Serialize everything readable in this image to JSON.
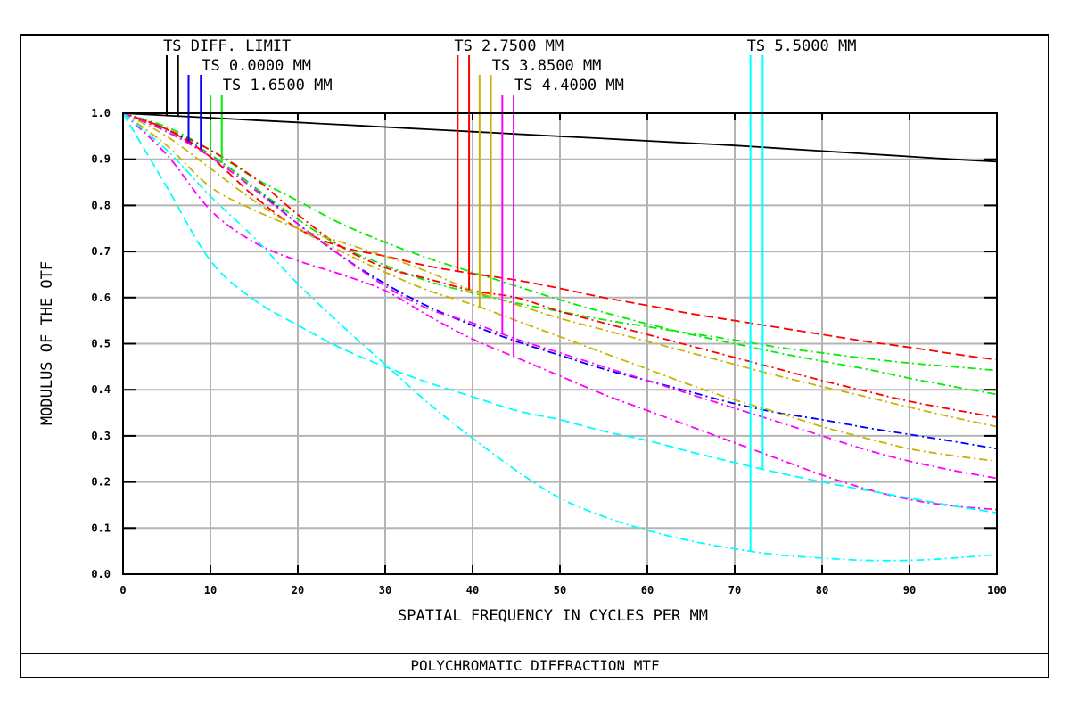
{
  "chart_data": {
    "type": "line",
    "title": "POLYCHROMATIC DIFFRACTION MTF",
    "xlabel": "SPATIAL FREQUENCY IN CYCLES PER MM",
    "ylabel": "MODULUS OF THE OTF",
    "xlim": [
      0,
      100
    ],
    "ylim": [
      0,
      1.0
    ],
    "grid": true,
    "x_ticks": [
      "0",
      "10",
      "20",
      "30",
      "40",
      "50",
      "60",
      "70",
      "80",
      "90",
      "100"
    ],
    "y_ticks": [
      "0.0",
      "0.1",
      "0.2",
      "0.3",
      "0.4",
      "0.5",
      "0.6",
      "0.7",
      "0.8",
      "0.9",
      "1.0"
    ],
    "legend": [
      {
        "label": "TS DIFF. LIMIT",
        "color": "#000000",
        "marker_x": [
          5,
          6.3
        ]
      },
      {
        "label": "TS 0.0000 MM",
        "color": "#0000ff",
        "marker_x": [
          7.5,
          8.9
        ]
      },
      {
        "label": "TS 1.6500 MM",
        "color": "#00ee00",
        "marker_x": [
          10,
          11.3
        ]
      },
      {
        "label": "TS 2.7500 MM",
        "color": "#ff0000",
        "marker_x": [
          38.3,
          39.6
        ]
      },
      {
        "label": "TS 3.8500 MM",
        "color": "#c8b400",
        "marker_x": [
          40.8,
          42.1
        ]
      },
      {
        "label": "TS 4.4000 MM",
        "color": "#ff00ff",
        "marker_x": [
          43.4,
          44.7
        ]
      },
      {
        "label": "TS 5.5000 MM",
        "color": "#00ffff",
        "marker_x": [
          71.8,
          73.2
        ]
      }
    ],
    "x": [
      0,
      5,
      10,
      15,
      20,
      25,
      30,
      35,
      40,
      45,
      50,
      55,
      60,
      65,
      70,
      75,
      80,
      85,
      90,
      95,
      100
    ],
    "series": [
      {
        "name": "TS DIFF. LIMIT",
        "color": "#000000",
        "dash": "solid",
        "values": [
          1.0,
          0.995,
          0.99,
          0.985,
          0.98,
          0.975,
          0.97,
          0.965,
          0.96,
          0.955,
          0.95,
          0.945,
          0.94,
          0.935,
          0.93,
          0.924,
          0.918,
          0.912,
          0.906,
          0.9,
          0.895
        ]
      },
      {
        "name": "TS 0.0000 MM",
        "color": "#0000ff",
        "dash": "dashdot",
        "values": [
          1.0,
          0.965,
          0.91,
          0.84,
          0.76,
          0.69,
          0.63,
          0.58,
          0.54,
          0.505,
          0.475,
          0.445,
          0.42,
          0.395,
          0.37,
          0.35,
          0.335,
          0.318,
          0.303,
          0.288,
          0.272
        ]
      },
      {
        "name": "TS 1.6500 MM T",
        "color": "#00ee00",
        "dash": "dashdot",
        "values": [
          1.0,
          0.97,
          0.92,
          0.86,
          0.81,
          0.76,
          0.72,
          0.685,
          0.655,
          0.625,
          0.595,
          0.568,
          0.543,
          0.52,
          0.5,
          0.48,
          0.462,
          0.445,
          0.425,
          0.407,
          0.39
        ]
      },
      {
        "name": "TS 1.6500 MM S",
        "color": "#00ee00",
        "dash": "dashdot",
        "values": [
          1.0,
          0.96,
          0.91,
          0.84,
          0.77,
          0.71,
          0.67,
          0.635,
          0.61,
          0.588,
          0.57,
          0.552,
          0.537,
          0.522,
          0.508,
          0.492,
          0.48,
          0.468,
          0.458,
          0.45,
          0.442
        ]
      },
      {
        "name": "TS 2.7500 MM T",
        "color": "#ff0000",
        "dash": "dashed",
        "values": [
          1.0,
          0.965,
          0.905,
          0.82,
          0.75,
          0.71,
          0.69,
          0.668,
          0.652,
          0.638,
          0.62,
          0.6,
          0.583,
          0.565,
          0.55,
          0.535,
          0.52,
          0.505,
          0.492,
          0.478,
          0.465
        ]
      },
      {
        "name": "TS 2.7500 MM S",
        "color": "#ff0000",
        "dash": "dashdot",
        "values": [
          1.0,
          0.965,
          0.92,
          0.86,
          0.78,
          0.71,
          0.665,
          0.64,
          0.615,
          0.6,
          0.57,
          0.545,
          0.52,
          0.495,
          0.47,
          0.445,
          0.42,
          0.397,
          0.375,
          0.357,
          0.34
        ]
      },
      {
        "name": "TS 3.8500 MM T",
        "color": "#c8b400",
        "dash": "dashdot",
        "values": [
          1.0,
          0.95,
          0.88,
          0.81,
          0.75,
          0.7,
          0.655,
          0.615,
          0.585,
          0.55,
          0.515,
          0.48,
          0.445,
          0.41,
          0.378,
          0.35,
          0.32,
          0.295,
          0.272,
          0.257,
          0.245
        ]
      },
      {
        "name": "TS 3.8500 MM S",
        "color": "#c8b400",
        "dash": "dashdot",
        "values": [
          1.0,
          0.93,
          0.84,
          0.79,
          0.75,
          0.72,
          0.69,
          0.655,
          0.615,
          0.585,
          0.555,
          0.53,
          0.505,
          0.48,
          0.455,
          0.43,
          0.407,
          0.385,
          0.362,
          0.34,
          0.32
        ]
      },
      {
        "name": "TS 4.4000 MM T",
        "color": "#ff00ff",
        "dash": "dashdot",
        "values": [
          1.0,
          0.96,
          0.905,
          0.835,
          0.76,
          0.69,
          0.625,
          0.575,
          0.545,
          0.51,
          0.48,
          0.45,
          0.42,
          0.39,
          0.36,
          0.33,
          0.3,
          0.27,
          0.245,
          0.225,
          0.208
        ]
      },
      {
        "name": "TS 4.4000 MM S",
        "color": "#ff00ff",
        "dash": "dashdot",
        "values": [
          1.0,
          0.91,
          0.79,
          0.72,
          0.68,
          0.65,
          0.615,
          0.56,
          0.51,
          0.47,
          0.43,
          0.39,
          0.355,
          0.32,
          0.285,
          0.25,
          0.215,
          0.185,
          0.162,
          0.148,
          0.14
        ]
      },
      {
        "name": "TS 5.5000 MM T",
        "color": "#00ffff",
        "dash": "dashdot",
        "values": [
          1.0,
          0.92,
          0.82,
          0.73,
          0.63,
          0.54,
          0.455,
          0.37,
          0.295,
          0.225,
          0.165,
          0.125,
          0.095,
          0.072,
          0.055,
          0.042,
          0.035,
          0.03,
          0.03,
          0.035,
          0.043
        ]
      },
      {
        "name": "TS 5.5000 MM S",
        "color": "#00ffff",
        "dash": "dashed",
        "values": [
          1.0,
          0.84,
          0.68,
          0.595,
          0.54,
          0.49,
          0.45,
          0.415,
          0.385,
          0.355,
          0.335,
          0.31,
          0.29,
          0.265,
          0.242,
          0.22,
          0.2,
          0.182,
          0.165,
          0.148,
          0.133
        ]
      }
    ]
  }
}
